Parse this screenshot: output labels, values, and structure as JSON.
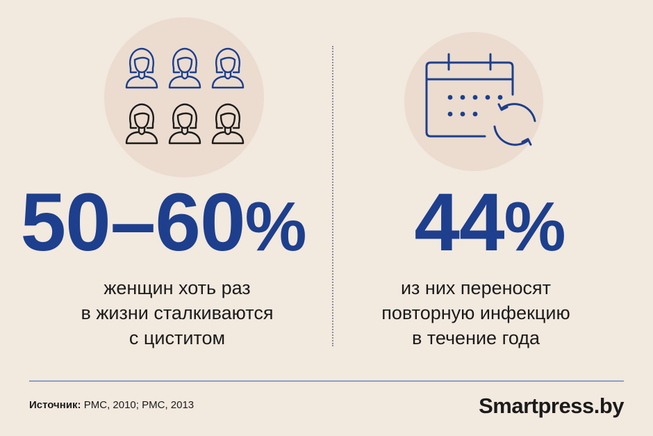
{
  "left": {
    "value": "50–60",
    "unit": "%",
    "caption_lines": [
      "женщин хоть раз",
      "в жизни сталкиваются",
      "с циститом"
    ],
    "icon": "women-group-icon"
  },
  "right": {
    "value": "44",
    "unit": "%",
    "caption_lines": [
      "из них переносят",
      "повторную инфекцию",
      "в течение года"
    ],
    "icon": "calendar-repeat-icon"
  },
  "footer": {
    "source_label": "Источник:",
    "source_text": "PMC, 2010; PMC, 2013",
    "brand": "Smartpress.by"
  },
  "colors": {
    "background": "#f2e9df",
    "accent_blue": "#1d3f8d",
    "text": "#1b1b1b"
  }
}
